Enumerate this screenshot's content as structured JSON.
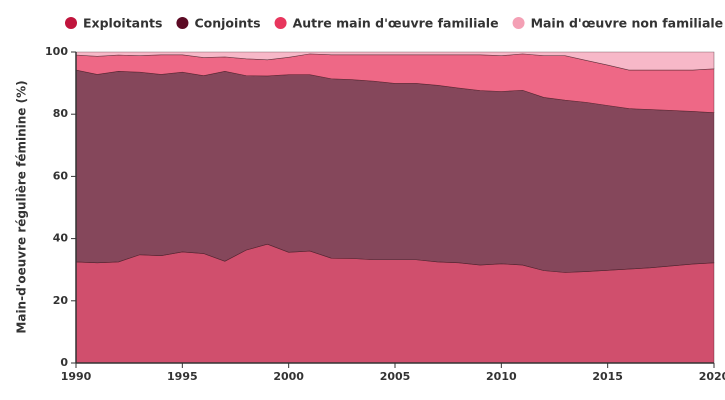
{
  "chart_data": {
    "type": "stacked-area",
    "y_label": "Main-d'oeuvre régulière féminine (%)",
    "x": [
      1990,
      1991,
      1992,
      1993,
      1994,
      1995,
      1996,
      1997,
      1998,
      1999,
      2000,
      2001,
      2002,
      2003,
      2004,
      2005,
      2006,
      2007,
      2008,
      2009,
      2010,
      2011,
      2012,
      2013,
      2014,
      2015,
      2016,
      2017,
      2018,
      2019,
      2020
    ],
    "series": [
      {
        "name": "Exploitants",
        "color": "#c0143c",
        "values": [
          32.5,
          32.2,
          32.5,
          34.8,
          34.5,
          35.7,
          35.2,
          32.7,
          36.3,
          38.2,
          35.6,
          36.0,
          33.7,
          33.6,
          33.2,
          33.2,
          33.2,
          32.5,
          32.2,
          31.5,
          31.9,
          31.5,
          29.7,
          29.1,
          29.4,
          29.8,
          30.2,
          30.6,
          31.2,
          31.8,
          32.2
        ]
      },
      {
        "name": "Conjoints",
        "color": "#5c0a24",
        "values": [
          61.7,
          60.6,
          61.3,
          58.7,
          58.3,
          57.8,
          57.2,
          61.1,
          56.1,
          54.1,
          57.1,
          56.7,
          57.7,
          57.5,
          57.4,
          56.7,
          56.7,
          56.8,
          56.2,
          56.1,
          55.4,
          56.2,
          55.7,
          55.4,
          54.4,
          53.0,
          51.6,
          50.9,
          50.0,
          49.1,
          48.3
        ]
      },
      {
        "name": "Autre main d'œuvre familiale",
        "color": "#e8365d",
        "values": [
          4.8,
          5.8,
          5.2,
          5.3,
          6.3,
          5.6,
          5.8,
          4.6,
          5.4,
          5.2,
          5.6,
          6.7,
          7.7,
          8.0,
          8.5,
          9.2,
          9.2,
          9.8,
          10.7,
          11.5,
          11.5,
          11.7,
          13.4,
          14.3,
          13.5,
          13.0,
          12.4,
          12.7,
          13.0,
          13.3,
          14.1
        ]
      },
      {
        "name": "Main d'œuvre non familiale",
        "color": "#f4a0b5",
        "values": [
          1.0,
          1.4,
          1.0,
          1.2,
          0.9,
          0.9,
          1.8,
          1.6,
          2.2,
          2.5,
          1.7,
          0.6,
          0.9,
          0.9,
          0.9,
          0.9,
          0.9,
          0.9,
          0.9,
          0.9,
          1.2,
          0.6,
          1.2,
          1.2,
          2.7,
          4.2,
          5.8,
          5.8,
          5.8,
          5.8,
          5.4
        ]
      }
    ],
    "xlim": [
      1990,
      2020
    ],
    "xticks": [
      1990,
      1995,
      2000,
      2005,
      2010,
      2015,
      2020
    ],
    "ylim": [
      0,
      100
    ],
    "yticks": [
      0,
      20,
      40,
      60,
      80,
      100
    ]
  }
}
